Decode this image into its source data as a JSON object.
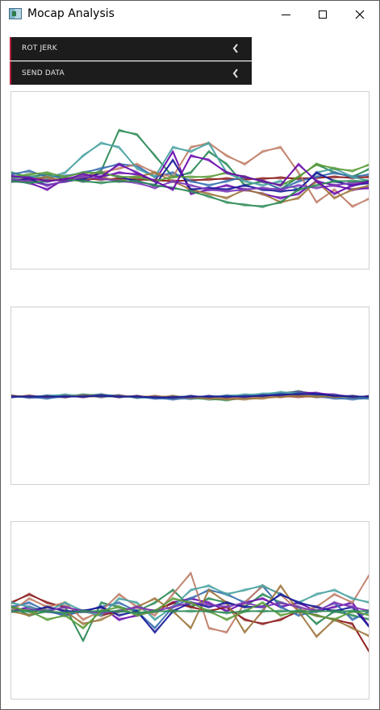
{
  "window": {
    "title": "Mocap Analysis",
    "icon": "app-window-icon",
    "controls": [
      "minimize",
      "maximize",
      "close"
    ]
  },
  "panels": [
    {
      "label": "ROT JERK",
      "state": "collapsed",
      "accent": "#b3213e"
    },
    {
      "label": "SEND DATA",
      "state": "collapsed",
      "accent": "#b3213e"
    }
  ],
  "chart_data": [
    {
      "type": "line",
      "x": [
        0,
        1,
        2,
        3,
        4,
        5,
        6,
        7,
        8,
        9,
        10,
        11,
        12,
        13,
        14,
        15,
        16,
        17,
        18,
        19,
        20
      ],
      "ylim": [
        -1,
        1
      ],
      "grid": false,
      "legend": "none",
      "palette": [
        "#2e8b57",
        "#6a0dad",
        "#8b1a1a",
        "#3a6fb0",
        "#c0806a",
        "#4aa3a3",
        "#a07840",
        "#1a1a9a",
        "#7d3ab8",
        "#5c9c3a"
      ],
      "series": [
        {
          "values": [
            0.1,
            0.05,
            0.08,
            0.02,
            0.05,
            0.12,
            0.6,
            0.55,
            0.3,
            0.05,
            0.1,
            0.35,
            0.2,
            -0.05,
            0.0,
            -0.1,
            0.05,
            0.2,
            0.1,
            0.05,
            0.15
          ]
        },
        {
          "values": [
            0.0,
            -0.02,
            -0.1,
            0.03,
            0.0,
            0.05,
            0.1,
            0.08,
            0.0,
            0.35,
            -0.15,
            -0.1,
            -0.05,
            -0.1,
            -0.15,
            -0.2,
            -0.15,
            0.0,
            -0.05,
            -0.1,
            -0.08
          ]
        },
        {
          "values": [
            0.02,
            0.03,
            0.02,
            0.02,
            0.03,
            0.02,
            0.03,
            0.02,
            0.01,
            0.0,
            0.01,
            0.02,
            0.03,
            0.02,
            0.03,
            0.04,
            0.03,
            0.04,
            0.05,
            0.04,
            0.05
          ]
        },
        {
          "values": [
            0.08,
            0.12,
            0.05,
            0.06,
            0.1,
            0.15,
            0.2,
            0.18,
            0.05,
            0.1,
            0.0,
            -0.05,
            0.0,
            0.05,
            0.0,
            -0.1,
            0.0,
            0.05,
            0.1,
            0.05,
            0.08
          ]
        },
        {
          "values": [
            0.05,
            0.0,
            0.02,
            0.0,
            0.05,
            0.1,
            0.15,
            0.2,
            0.1,
            0.05,
            0.4,
            0.45,
            0.3,
            0.2,
            0.35,
            0.4,
            0.1,
            -0.25,
            -0.1,
            -0.3,
            -0.2
          ]
        },
        {
          "values": [
            0.03,
            0.05,
            0.04,
            0.1,
            0.3,
            0.45,
            0.4,
            0.15,
            0.05,
            0.4,
            0.35,
            0.45,
            0.1,
            0.0,
            -0.05,
            0.0,
            -0.1,
            0.1,
            0.15,
            0.05,
            0.0
          ]
        },
        {
          "values": [
            0.0,
            0.02,
            0.05,
            0.0,
            0.02,
            0.05,
            0.0,
            0.05,
            0.1,
            0.0,
            -0.1,
            -0.15,
            -0.2,
            -0.1,
            -0.15,
            -0.25,
            -0.2,
            0.0,
            -0.2,
            -0.1,
            -0.05
          ]
        },
        {
          "values": [
            0.0,
            0.03,
            -0.05,
            0.0,
            0.02,
            0.1,
            0.05,
            0.0,
            -0.05,
            0.25,
            -0.1,
            -0.08,
            -0.1,
            -0.05,
            -0.1,
            -0.12,
            -0.1,
            0.1,
            0.0,
            -0.05,
            -0.02
          ]
        },
        {
          "values": [
            0.02,
            0.0,
            -0.05,
            0.0,
            0.05,
            0.03,
            0.0,
            -0.02,
            -0.08,
            0.0,
            -0.05,
            -0.1,
            -0.12,
            -0.1,
            -0.08,
            -0.1,
            -0.05,
            -0.08,
            -0.05,
            -0.02,
            0.0
          ]
        },
        {
          "values": [
            0.05,
            0.08,
            0.1,
            0.05,
            0.1,
            0.1,
            0.05,
            0.05,
            0.0,
            0.05,
            0.05,
            0.05,
            0.1,
            0.05,
            0.0,
            -0.05,
            0.05,
            0.2,
            0.15,
            0.12,
            0.2
          ]
        },
        {
          "values": [
            0.0,
            -0.02,
            0.0,
            0.02,
            0.0,
            -0.02,
            0.0,
            0.0,
            -0.05,
            -0.08,
            -0.12,
            -0.18,
            -0.25,
            -0.28,
            -0.3,
            -0.25,
            -0.1,
            -0.05,
            0.0,
            0.0,
            0.0
          ]
        },
        {
          "values": [
            0.06,
            0.04,
            0.0,
            0.02,
            0.08,
            0.05,
            0.2,
            0.1,
            0.0,
            -0.1,
            0.3,
            0.25,
            0.1,
            0.05,
            0.0,
            -0.05,
            0.2,
            0.0,
            -0.15,
            -0.05,
            0.0
          ]
        }
      ]
    },
    {
      "type": "line",
      "x": [
        0,
        1,
        2,
        3,
        4,
        5,
        6,
        7,
        8,
        9,
        10,
        11,
        12,
        13,
        14,
        15,
        16,
        17,
        18,
        19,
        20
      ],
      "ylim": [
        -1,
        1
      ],
      "grid": false,
      "legend": "none",
      "palette": [
        "#2e8b57",
        "#6a0dad",
        "#8b1a1a",
        "#3a6fb0",
        "#c0806a",
        "#4aa3a3",
        "#a07840",
        "#1a1a9a",
        "#7d3ab8",
        "#5c9c3a"
      ],
      "series": [
        {
          "values": [
            0.0,
            0.0,
            0.0,
            0.01,
            0.02,
            0.02,
            0.01,
            0.0,
            -0.01,
            -0.02,
            -0.02,
            -0.03,
            -0.04,
            -0.02,
            0.0,
            0.04,
            0.06,
            0.03,
            0.0,
            -0.01,
            -0.02
          ]
        },
        {
          "values": [
            0.0,
            0.0,
            0.0,
            0.0,
            0.01,
            0.0,
            0.0,
            0.0,
            -0.01,
            -0.01,
            0.0,
            0.0,
            0.0,
            0.01,
            0.02,
            0.04,
            0.05,
            0.04,
            0.02,
            0.0,
            0.0
          ]
        },
        {
          "values": [
            0.0,
            0.0,
            0.0,
            0.0,
            0.0,
            0.0,
            0.0,
            0.0,
            0.0,
            0.0,
            0.0,
            0.0,
            0.0,
            0.0,
            0.0,
            0.0,
            0.0,
            0.0,
            0.0,
            0.0,
            0.0
          ]
        },
        {
          "values": [
            0.0,
            -0.01,
            -0.02,
            0.0,
            0.01,
            0.02,
            0.01,
            -0.01,
            -0.02,
            -0.03,
            -0.02,
            -0.01,
            0.0,
            0.01,
            0.02,
            0.03,
            0.02,
            0.0,
            -0.02,
            -0.03,
            -0.02
          ]
        },
        {
          "values": [
            0.0,
            0.01,
            0.0,
            0.01,
            0.0,
            0.0,
            0.01,
            0.0,
            0.0,
            -0.01,
            -0.01,
            -0.02,
            -0.02,
            -0.01,
            0.0,
            0.01,
            0.02,
            0.01,
            0.0,
            0.0,
            0.0
          ]
        },
        {
          "values": [
            0.0,
            0.0,
            0.01,
            0.02,
            0.01,
            0.0,
            0.0,
            -0.01,
            -0.01,
            0.0,
            0.0,
            0.0,
            0.01,
            0.02,
            0.03,
            0.05,
            0.04,
            0.02,
            0.01,
            0.0,
            -0.01
          ]
        },
        {
          "values": [
            0.01,
            0.0,
            0.0,
            0.0,
            0.01,
            0.01,
            0.0,
            0.0,
            0.0,
            0.0,
            -0.01,
            -0.02,
            -0.03,
            -0.03,
            -0.02,
            0.0,
            0.01,
            0.0,
            0.0,
            0.0,
            0.0
          ]
        },
        {
          "values": [
            0.0,
            0.0,
            0.0,
            0.0,
            0.0,
            0.01,
            0.0,
            0.0,
            -0.01,
            -0.01,
            0.0,
            0.0,
            0.0,
            0.0,
            0.01,
            0.02,
            0.03,
            0.03,
            0.01,
            0.0,
            0.0
          ]
        }
      ]
    },
    {
      "type": "line",
      "x": [
        0,
        1,
        2,
        3,
        4,
        5,
        6,
        7,
        8,
        9,
        10,
        11,
        12,
        13,
        14,
        15,
        16,
        17,
        18,
        19,
        20
      ],
      "ylim": [
        -1,
        1
      ],
      "grid": false,
      "legend": "none",
      "palette": [
        "#2e8b57",
        "#6a0dad",
        "#8b1a1a",
        "#3a6fb0",
        "#c0806a",
        "#4aa3a3",
        "#a07840",
        "#1a1a9a",
        "#7d3ab8",
        "#5c9c3a"
      ],
      "series": [
        {
          "values": [
            0.05,
            -0.05,
            0.0,
            0.05,
            -0.35,
            0.1,
            0.05,
            0.0,
            0.1,
            0.25,
            0.05,
            0.15,
            0.1,
            0.05,
            0.2,
            0.1,
            0.05,
            -0.15,
            0.0,
            -0.05,
            -0.1
          ]
        },
        {
          "values": [
            0.0,
            0.05,
            0.0,
            -0.05,
            0.0,
            0.05,
            -0.1,
            -0.05,
            0.0,
            0.1,
            0.15,
            0.1,
            0.0,
            0.1,
            0.15,
            0.05,
            0.1,
            0.0,
            0.05,
            0.1,
            -0.2
          ]
        },
        {
          "values": [
            0.1,
            0.2,
            0.1,
            0.05,
            0.0,
            -0.05,
            0.0,
            0.05,
            0.0,
            0.1,
            0.05,
            0.0,
            0.05,
            -0.1,
            -0.15,
            -0.1,
            0.0,
            -0.05,
            -0.1,
            -0.15,
            -0.5
          ]
        },
        {
          "values": [
            0.05,
            0.1,
            0.0,
            -0.05,
            0.0,
            0.05,
            0.1,
            0.0,
            -0.2,
            0.05,
            0.15,
            0.25,
            0.2,
            0.1,
            0.3,
            0.05,
            -0.05,
            0.0,
            0.1,
            -0.1,
            0.0
          ]
        },
        {
          "values": [
            0.0,
            0.15,
            0.05,
            0.1,
            -0.1,
            0.0,
            0.2,
            0.05,
            -0.05,
            0.2,
            0.45,
            -0.2,
            -0.25,
            0.1,
            0.3,
            0.2,
            0.0,
            0.05,
            0.2,
            0.1,
            0.45
          ]
        },
        {
          "values": [
            0.1,
            0.05,
            0.0,
            0.1,
            0.0,
            -0.05,
            0.15,
            0.1,
            -0.1,
            0.05,
            0.25,
            0.3,
            0.2,
            0.25,
            0.3,
            0.2,
            0.1,
            0.2,
            0.25,
            0.15,
            0.1
          ]
        },
        {
          "values": [
            0.0,
            -0.05,
            0.05,
            0.0,
            -0.15,
            -0.1,
            0.0,
            0.05,
            0.15,
            0.0,
            -0.2,
            0.25,
            0.1,
            -0.25,
            0.0,
            0.3,
            0.0,
            -0.3,
            -0.1,
            -0.2,
            -0.3
          ]
        },
        {
          "values": [
            0.05,
            0.0,
            0.05,
            0.0,
            0.0,
            0.05,
            -0.05,
            0.0,
            -0.25,
            0.0,
            0.1,
            0.05,
            0.1,
            0.05,
            0.05,
            0.2,
            0.1,
            0.05,
            0.0,
            0.05,
            -0.2
          ]
        },
        {
          "values": [
            0.0,
            0.02,
            0.0,
            0.05,
            0.0,
            -0.02,
            0.0,
            0.05,
            0.0,
            0.05,
            0.1,
            0.08,
            0.05,
            0.1,
            0.05,
            0.1,
            0.05,
            0.0,
            0.1,
            0.05,
            0.0
          ]
        },
        {
          "values": [
            0.05,
            0.0,
            -0.1,
            -0.05,
            -0.2,
            0.0,
            0.05,
            -0.05,
            0.0,
            0.15,
            0.1,
            0.0,
            -0.1,
            0.0,
            0.1,
            -0.05,
            0.0,
            -0.05,
            -0.1,
            0.0,
            -0.05
          ]
        },
        {
          "values": [
            0.0,
            0.0,
            0.0,
            -0.02,
            0.0,
            0.0,
            0.0,
            -0.02,
            0.0,
            0.0,
            0.0,
            0.0,
            -0.02,
            0.0,
            0.0,
            0.0,
            0.0,
            0.0,
            0.0,
            0.0,
            0.0
          ]
        }
      ]
    }
  ]
}
